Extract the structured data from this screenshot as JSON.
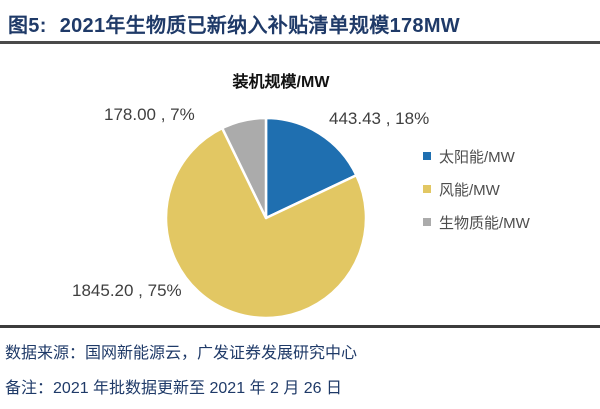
{
  "header": {
    "figure_label": "图5:",
    "title": "2021年生物质已新纳入补贴清单规模178MW"
  },
  "chart_data": {
    "type": "pie",
    "title": "装机规模/MW",
    "unit": "MW",
    "direction": "clockwise",
    "start_angle_deg": 0,
    "legend_position": "right",
    "slices": [
      {
        "name": "太阳能/MW",
        "value": 443.43,
        "percent": 18,
        "label": "443.43 , 18%",
        "color": "#1F6FB0"
      },
      {
        "name": "风能/MW",
        "value": 1845.2,
        "percent": 75,
        "label": "1845.20 , 75%",
        "color": "#E2C763"
      },
      {
        "name": "生物质能/MW",
        "value": 178.0,
        "percent": 7,
        "label": "178.00 , 7%",
        "color": "#ABABAB"
      }
    ]
  },
  "footer": {
    "source_label": "数据来源：",
    "source_text": "国网新能源云，广发证券发展研究中心",
    "note_label": "备注：",
    "note_text": "2021 年批数据更新至 2021 年 2 月 26 日"
  }
}
